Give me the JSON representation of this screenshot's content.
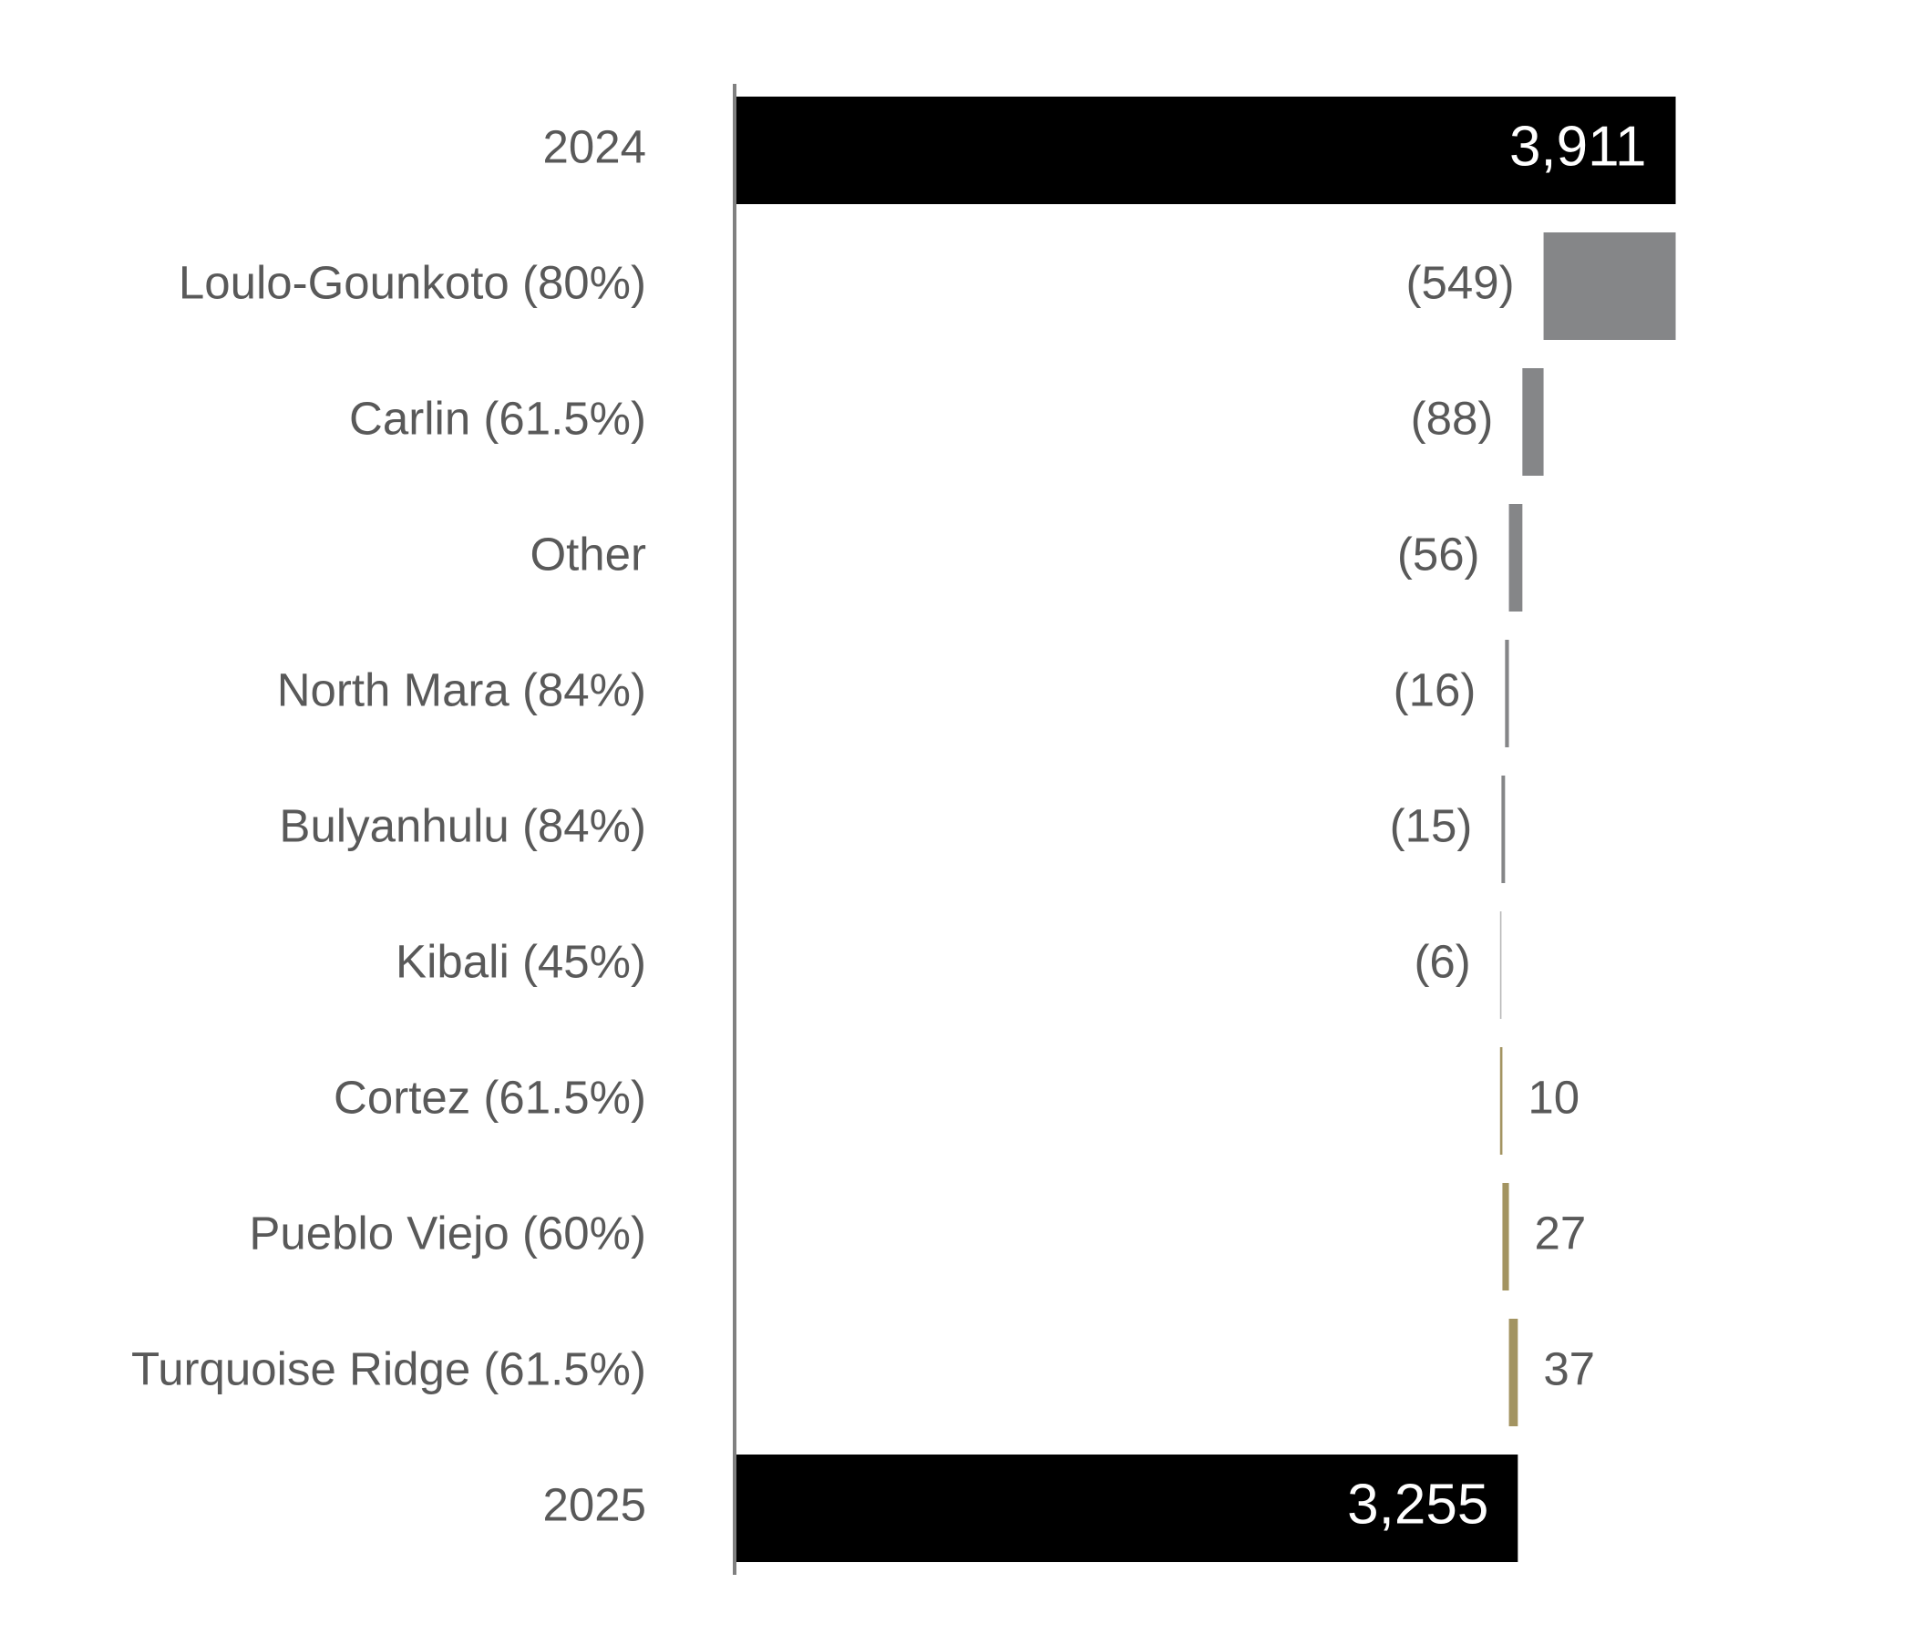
{
  "chart_data": {
    "type": "waterfall",
    "categories": [
      "2024",
      "Loulo-Gounkoto (80%)",
      "Carlin (61.5%)",
      "Other",
      "North Mara (84%)",
      "Bulyanhulu (84%)",
      "Kibali (45%)",
      "Cortez (61.5%)",
      "Pueblo Viejo (60%)",
      "Turquoise Ridge (61.5%)",
      "2025"
    ],
    "values": [
      3911,
      -549,
      -88,
      -56,
      -16,
      -15,
      -6,
      10,
      27,
      37,
      3255
    ],
    "value_labels": [
      "3,911",
      "(549)",
      "(88)",
      "(56)",
      "(16)",
      "(15)",
      "(6)",
      "10",
      "27",
      "37",
      "3,255"
    ],
    "colors": [
      "#000000",
      "#858688",
      "#858688",
      "#858688",
      "#858688",
      "#858688",
      "#b8b8b8",
      "#a39461",
      "#a39461",
      "#a39461",
      "#000000"
    ],
    "xlim": [
      0,
      4000
    ]
  }
}
